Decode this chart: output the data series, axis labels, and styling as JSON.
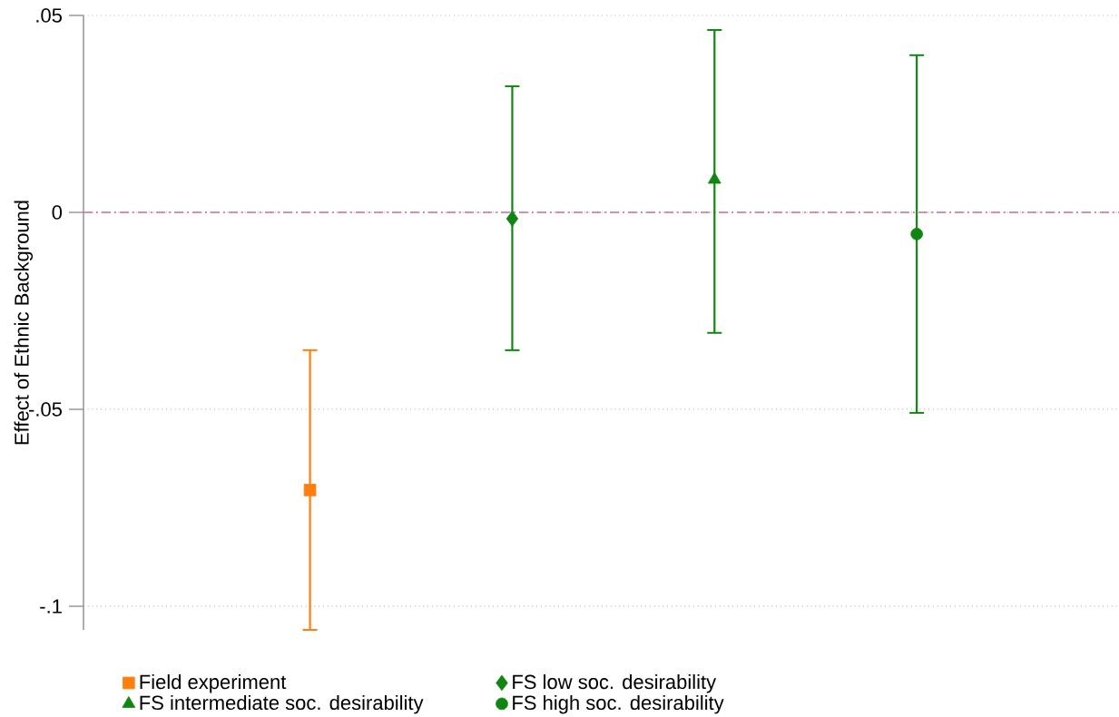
{
  "chart_data": {
    "type": "scatter",
    "ylabel": "Effect of Ethnic Background",
    "categories": [
      null,
      null,
      null,
      null
    ],
    "series": [
      {
        "name": "Field experiment",
        "color": "#ff7f0e",
        "marker": "square",
        "values": [
          -0.0705,
          null,
          null,
          null
        ],
        "errors": [
          [
            -0.106,
            -0.035
          ],
          null,
          null,
          null
        ]
      },
      {
        "name": "FS low soc. desirability",
        "color": "#118511",
        "marker": "diamond",
        "values": [
          null,
          -0.0016,
          null,
          null
        ],
        "errors": [
          null,
          [
            -0.035,
            0.032
          ],
          null,
          null
        ]
      },
      {
        "name": "FS intermediate soc. desirability",
        "color": "#118511",
        "marker": "triangle",
        "values": [
          null,
          null,
          0.0083,
          null
        ],
        "errors": [
          null,
          null,
          [
            -0.0306,
            0.0463
          ],
          null
        ]
      },
      {
        "name": "FS high soc. desirability",
        "color": "#118511",
        "marker": "circle",
        "values": [
          null,
          null,
          null,
          -0.0055
        ],
        "errors": [
          null,
          null,
          null,
          [
            -0.0509,
            0.0399
          ]
        ]
      }
    ],
    "ylim": [
      -0.106,
      0.05
    ],
    "yticks": [
      {
        "value": -0.1,
        "label": "-.1"
      },
      {
        "value": -0.05,
        "label": "-.05"
      },
      0,
      {
        "value": 0.05,
        "label": ".05"
      }
    ],
    "grid": "y",
    "legend": "bottom",
    "ref_lines": [
      {
        "axis": "y",
        "value": 0,
        "color": "#cc6e9e",
        "line_style": "dashed"
      }
    ]
  }
}
